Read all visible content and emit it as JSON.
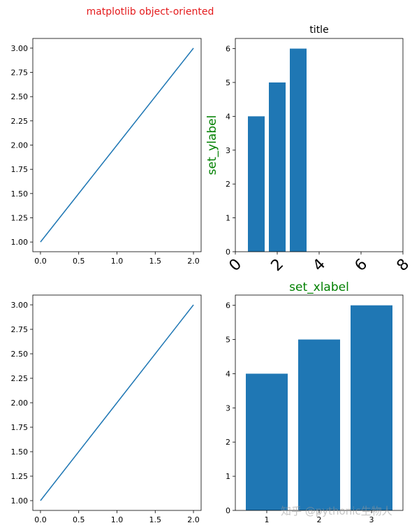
{
  "suptitle": "matplotlib object-oriented",
  "suptitle_color": "#e41a1c",
  "watermark": "知乎 @pythonic生物人",
  "chart_data": [
    {
      "type": "line",
      "x": [
        0,
        1,
        2
      ],
      "y": [
        1,
        2,
        3
      ],
      "xlim": [
        -0.1,
        2.1
      ],
      "ylim": [
        0.9,
        3.1
      ],
      "xticks": [
        "0.0",
        "0.5",
        "1.0",
        "1.5",
        "2.0"
      ],
      "xtick_values": [
        0,
        0.5,
        1,
        1.5,
        2
      ],
      "yticks": [
        "1.00",
        "1.25",
        "1.50",
        "1.75",
        "2.00",
        "2.25",
        "2.50",
        "2.75",
        "3.00"
      ],
      "ytick_values": [
        1,
        1.25,
        1.5,
        1.75,
        2,
        2.25,
        2.5,
        2.75,
        3
      ],
      "color": "#1f77b4",
      "grid": false
    },
    {
      "type": "bar",
      "categories": [
        1,
        2,
        3
      ],
      "values": [
        4,
        5,
        6
      ],
      "title": "title",
      "xlabel": "set_xlabel",
      "ylabel": "set_ylabel",
      "label_color": "#008000",
      "xlim": [
        0,
        8
      ],
      "ylim": [
        0,
        6.3
      ],
      "xticks": [
        "0",
        "2",
        "4",
        "6",
        "8"
      ],
      "xtick_values": [
        0,
        2,
        4,
        6,
        8
      ],
      "xtick_rotation": 45,
      "yticks": [
        "0",
        "1",
        "2",
        "3",
        "4",
        "5",
        "6"
      ],
      "ytick_values": [
        0,
        1,
        2,
        3,
        4,
        5,
        6
      ],
      "color": "#1f77b4",
      "grid": false
    },
    {
      "type": "line",
      "x": [
        0,
        1,
        2
      ],
      "y": [
        1,
        2,
        3
      ],
      "xlim": [
        -0.1,
        2.1
      ],
      "ylim": [
        0.9,
        3.1
      ],
      "xticks": [
        "0.0",
        "0.5",
        "1.0",
        "1.5",
        "2.0"
      ],
      "xtick_values": [
        0,
        0.5,
        1,
        1.5,
        2
      ],
      "yticks": [
        "1.00",
        "1.25",
        "1.50",
        "1.75",
        "2.00",
        "2.25",
        "2.50",
        "2.75",
        "3.00"
      ],
      "ytick_values": [
        1,
        1.25,
        1.5,
        1.75,
        2,
        2.25,
        2.5,
        2.75,
        3
      ],
      "color": "#1f77b4",
      "grid": false
    },
    {
      "type": "bar",
      "categories": [
        1,
        2,
        3
      ],
      "values": [
        4,
        5,
        6
      ],
      "xlim": [
        0.4,
        3.6
      ],
      "ylim": [
        0,
        6.3
      ],
      "xticks": [
        "1",
        "2",
        "3"
      ],
      "xtick_values": [
        1,
        2,
        3
      ],
      "yticks": [
        "0",
        "1",
        "2",
        "3",
        "4",
        "5",
        "6"
      ],
      "ytick_values": [
        0,
        1,
        2,
        3,
        4,
        5,
        6
      ],
      "color": "#1f77b4",
      "grid": false
    }
  ]
}
